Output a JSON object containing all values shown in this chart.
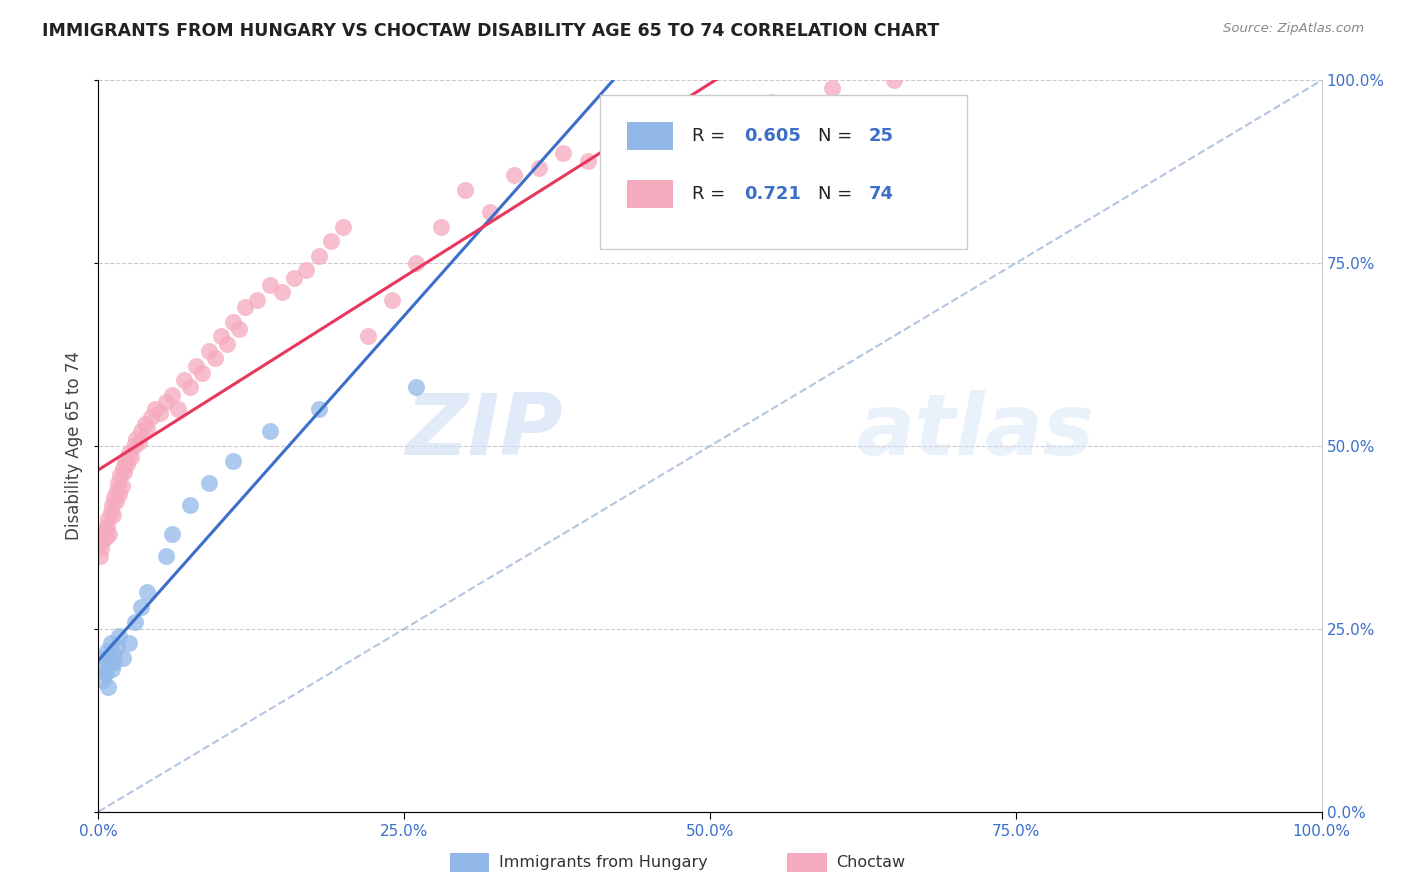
{
  "title": "IMMIGRANTS FROM HUNGARY VS CHOCTAW DISABILITY AGE 65 TO 74 CORRELATION CHART",
  "source": "Source: ZipAtlas.com",
  "ylabel": "Disability Age 65 to 74",
  "legend_labels": [
    "Immigrants from Hungary",
    "Choctaw"
  ],
  "r_hungary": 0.605,
  "n_hungary": 25,
  "r_choctaw": 0.721,
  "n_choctaw": 74,
  "color_hungary": "#92b8e8",
  "color_choctaw": "#f5aabd",
  "line_color_hungary": "#3b6fc9",
  "line_color_choctaw": "#e8365d",
  "ref_line_color": "#a0b8d8",
  "watermark_zip": "ZIP",
  "watermark_atlas": "atlas",
  "hungary_x": [
    0.2,
    0.4,
    0.5,
    0.6,
    0.7,
    0.8,
    1.0,
    1.1,
    1.2,
    1.3,
    1.5,
    1.7,
    2.0,
    2.5,
    3.0,
    3.5,
    4.0,
    5.5,
    6.0,
    7.5,
    9.0,
    11.0,
    14.0,
    18.0,
    26.0
  ],
  "hungary_y": [
    20.0,
    18.0,
    21.0,
    19.0,
    22.0,
    17.0,
    23.0,
    19.5,
    21.5,
    20.5,
    22.5,
    24.0,
    21.0,
    23.0,
    26.0,
    28.0,
    30.0,
    35.0,
    38.0,
    42.0,
    45.0,
    48.0,
    52.0,
    55.0,
    58.0
  ],
  "choctaw_x": [
    0.1,
    0.2,
    0.3,
    0.4,
    0.5,
    0.6,
    0.7,
    0.8,
    0.9,
    1.0,
    1.1,
    1.2,
    1.3,
    1.4,
    1.5,
    1.6,
    1.7,
    1.8,
    1.9,
    2.0,
    2.1,
    2.2,
    2.3,
    2.5,
    2.7,
    2.9,
    3.1,
    3.3,
    3.5,
    3.8,
    4.0,
    4.3,
    4.6,
    5.0,
    5.5,
    6.0,
    6.5,
    7.0,
    7.5,
    8.0,
    8.5,
    9.0,
    9.5,
    10.0,
    10.5,
    11.0,
    11.5,
    12.0,
    13.0,
    14.0,
    15.0,
    16.0,
    17.0,
    18.0,
    19.0,
    20.0,
    22.0,
    24.0,
    26.0,
    28.0,
    30.0,
    32.0,
    34.0,
    36.0,
    38.0,
    40.0,
    42.0,
    44.0,
    46.0,
    48.0,
    50.0,
    55.0,
    60.0,
    65.0
  ],
  "choctaw_y": [
    35.0,
    36.0,
    37.0,
    38.0,
    38.5,
    37.5,
    39.0,
    40.0,
    38.0,
    41.0,
    42.0,
    40.5,
    43.0,
    42.5,
    44.0,
    45.0,
    43.5,
    46.0,
    44.5,
    47.0,
    46.5,
    48.0,
    47.5,
    49.0,
    48.5,
    50.0,
    51.0,
    50.5,
    52.0,
    53.0,
    52.5,
    54.0,
    55.0,
    54.5,
    56.0,
    57.0,
    55.0,
    59.0,
    58.0,
    61.0,
    60.0,
    63.0,
    62.0,
    65.0,
    64.0,
    67.0,
    66.0,
    69.0,
    70.0,
    72.0,
    71.0,
    73.0,
    74.0,
    76.0,
    78.0,
    80.0,
    65.0,
    70.0,
    75.0,
    80.0,
    85.0,
    82.0,
    87.0,
    88.0,
    90.0,
    89.0,
    91.0,
    92.0,
    94.0,
    93.0,
    96.0,
    97.0,
    99.0,
    100.0
  ]
}
